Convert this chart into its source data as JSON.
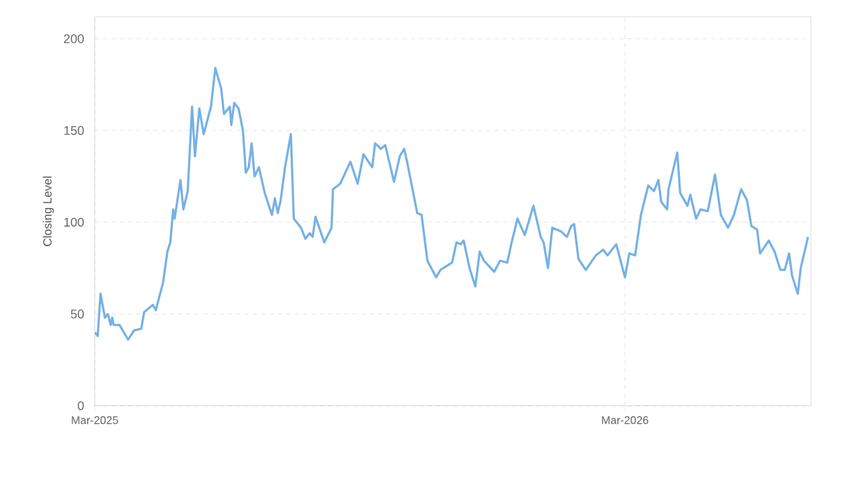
{
  "chart_data": {
    "type": "line",
    "ylabel": "Closing Level",
    "xlim": [
      "2025-03-01",
      "2026-07-07"
    ],
    "ylim": [
      0,
      212
    ],
    "xticks": [
      {
        "value": "2025-03-01",
        "label": "Mar-2025"
      },
      {
        "value": "2026-03-01",
        "label": "Mar-2026"
      }
    ],
    "yticks": [
      0,
      50,
      100,
      150,
      200
    ],
    "grid": true,
    "marker": "none",
    "line_style": "solid",
    "series": [
      {
        "color": "#76b1e5",
        "x": [
          "2025-03-01",
          "2025-03-03",
          "2025-03-05",
          "2025-03-08",
          "2025-03-10",
          "2025-03-12",
          "2025-03-13",
          "2025-03-14",
          "2025-03-18",
          "2025-03-24",
          "2025-03-28",
          "2025-04-02",
          "2025-04-04",
          "2025-04-10",
          "2025-04-12",
          "2025-04-17",
          "2025-04-20",
          "2025-04-22",
          "2025-04-24",
          "2025-04-25",
          "2025-04-29",
          "2025-05-01",
          "2025-05-04",
          "2025-05-07",
          "2025-05-09",
          "2025-05-12",
          "2025-05-15",
          "2025-05-20",
          "2025-05-23",
          "2025-05-27",
          "2025-05-29",
          "2025-06-02",
          "2025-06-03",
          "2025-06-05",
          "2025-06-08",
          "2025-06-11",
          "2025-06-13",
          "2025-06-15",
          "2025-06-17",
          "2025-06-19",
          "2025-06-22",
          "2025-06-26",
          "2025-07-01",
          "2025-07-03",
          "2025-07-05",
          "2025-07-07",
          "2025-07-10",
          "2025-07-14",
          "2025-07-16",
          "2025-07-21",
          "2025-07-24",
          "2025-07-27",
          "2025-07-29",
          "2025-07-31",
          "2025-08-06",
          "2025-08-11",
          "2025-08-12",
          "2025-08-17",
          "2025-08-24",
          "2025-08-29",
          "2025-09-02",
          "2025-09-08",
          "2025-09-10",
          "2025-09-14",
          "2025-09-17",
          "2025-09-23",
          "2025-09-27",
          "2025-09-30",
          "2025-10-02",
          "2025-10-09",
          "2025-10-12",
          "2025-10-16",
          "2025-10-22",
          "2025-10-25",
          "2025-11-02",
          "2025-11-05",
          "2025-11-08",
          "2025-11-10",
          "2025-11-14",
          "2025-11-18",
          "2025-11-21",
          "2025-11-24",
          "2025-12-01",
          "2025-12-05",
          "2025-12-10",
          "2025-12-13",
          "2025-12-17",
          "2025-12-22",
          "2025-12-28",
          "2026-01-02",
          "2026-01-04",
          "2026-01-07",
          "2026-01-10",
          "2026-01-16",
          "2026-01-20",
          "2026-01-23",
          "2026-01-25",
          "2026-01-28",
          "2026-02-02",
          "2026-02-09",
          "2026-02-14",
          "2026-02-17",
          "2026-02-23",
          "2026-03-01",
          "2026-03-04",
          "2026-03-08",
          "2026-03-12",
          "2026-03-17",
          "2026-03-21",
          "2026-03-24",
          "2026-03-26",
          "2026-03-30",
          "2026-03-31",
          "2026-04-06",
          "2026-04-08",
          "2026-04-13",
          "2026-04-15",
          "2026-04-19",
          "2026-04-22",
          "2026-04-27",
          "2026-05-02",
          "2026-05-06",
          "2026-05-11",
          "2026-05-15",
          "2026-05-20",
          "2026-05-24",
          "2026-05-27",
          "2026-05-31",
          "2026-06-02",
          "2026-06-08",
          "2026-06-12",
          "2026-06-16",
          "2026-06-19",
          "2026-06-22",
          "2026-06-24",
          "2026-06-28",
          "2026-06-30",
          "2026-07-05"
        ],
        "values": [
          40,
          38,
          61,
          48,
          50,
          44,
          48,
          44,
          44,
          36,
          41,
          42,
          51,
          55,
          52,
          67,
          84,
          89,
          107,
          102,
          123,
          107,
          117,
          163,
          136,
          162,
          148,
          163,
          184,
          173,
          159,
          163,
          153,
          165,
          162,
          150,
          127,
          130,
          143,
          125,
          130,
          116,
          104,
          113,
          105,
          112,
          130,
          148,
          102,
          97,
          91,
          94,
          92,
          103,
          89,
          97,
          118,
          121,
          133,
          121,
          137,
          130,
          143,
          140,
          142,
          122,
          136,
          140,
          133,
          105,
          104,
          79,
          70,
          74,
          78,
          89,
          88,
          90,
          75,
          65,
          84,
          79,
          73,
          79,
          78,
          89,
          102,
          93,
          109,
          92,
          89,
          75,
          97,
          95,
          92,
          98,
          99,
          80,
          74,
          82,
          85,
          82,
          88,
          70,
          83,
          82,
          104,
          120,
          117,
          123,
          111,
          107,
          118,
          138,
          116,
          109,
          115,
          102,
          107,
          106,
          126,
          104,
          97,
          104,
          118,
          112,
          98,
          96,
          83,
          90,
          84,
          74,
          74,
          83,
          71,
          61,
          75,
          92
        ]
      }
    ]
  }
}
